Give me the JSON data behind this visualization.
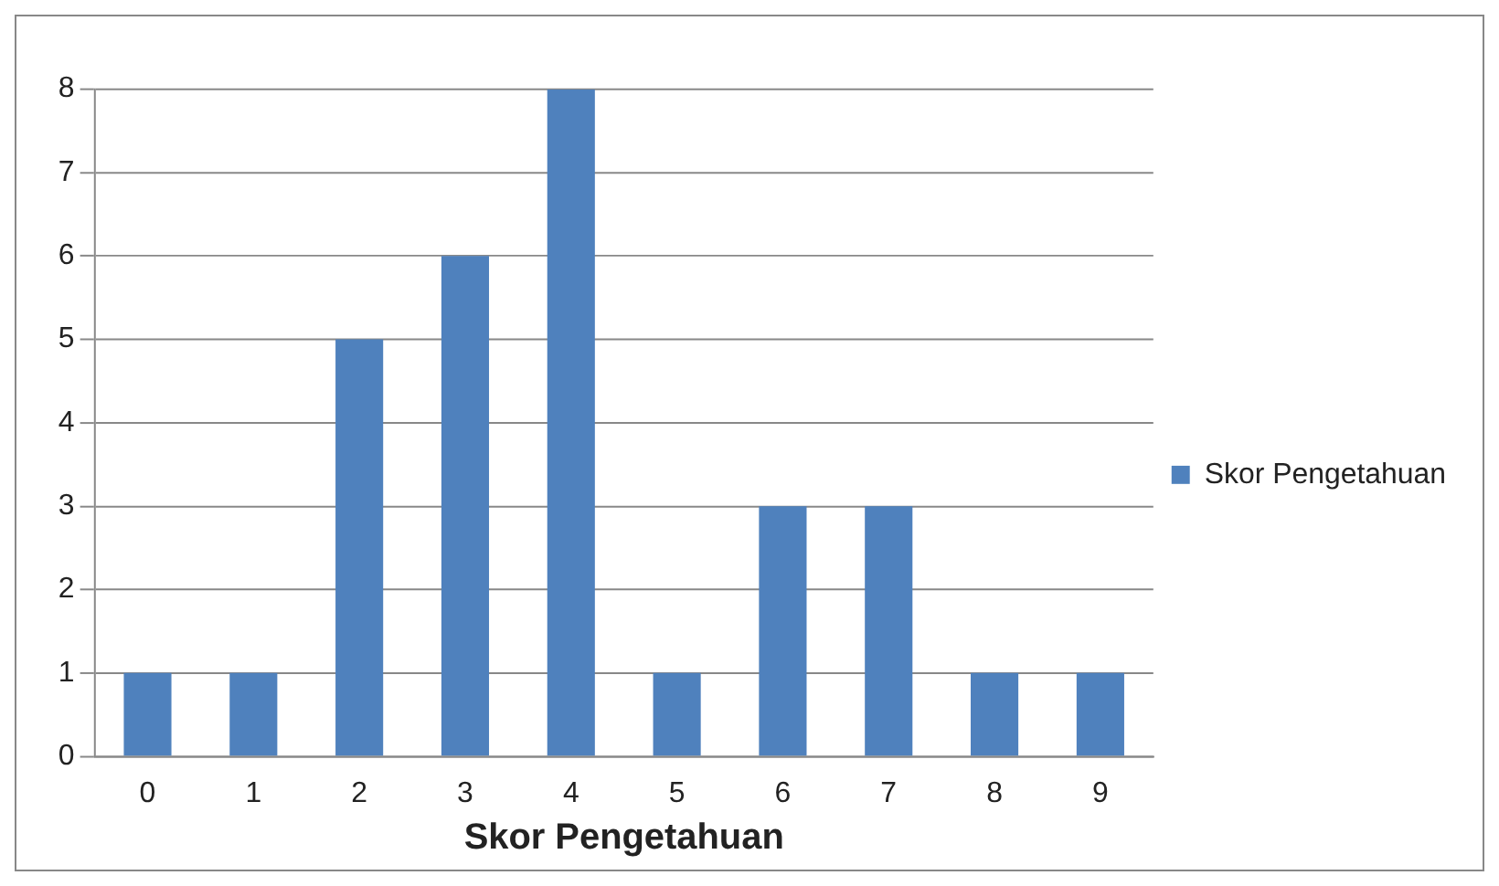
{
  "chart_data": {
    "type": "bar",
    "xlabel": "Skor Pengetahuan",
    "categories": [
      "0",
      "1",
      "2",
      "3",
      "4",
      "5",
      "6",
      "7",
      "8",
      "9"
    ],
    "series": [
      {
        "name": "Skor Pengetahuan",
        "color": "#4f81bd",
        "values": [
          1,
          1,
          5,
          6,
          8,
          1,
          3,
          3,
          1,
          1
        ]
      }
    ],
    "ylim": [
      0,
      8
    ],
    "yticks": [
      0,
      1,
      2,
      3,
      4,
      5,
      6,
      7,
      8
    ],
    "grid": "y",
    "legend": "right"
  }
}
